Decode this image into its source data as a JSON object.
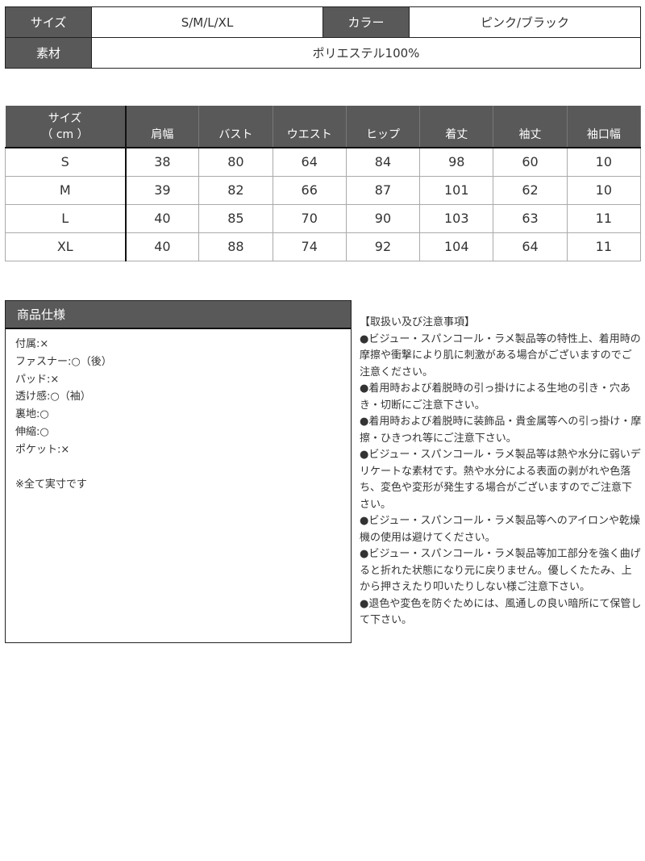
{
  "info": {
    "size_label": "サイズ",
    "size_value": "S/M/L/XL",
    "color_label": "カラー",
    "color_value": "ピンク/ブラック",
    "material_label": "素材",
    "material_value": "ポリエステル100%"
  },
  "size_table": {
    "header_first_line1": "サイズ",
    "header_first_line2": "（ cm ）",
    "columns": [
      "肩幅",
      "バスト",
      "ウエスト",
      "ヒップ",
      "着丈",
      "袖丈",
      "袖口幅"
    ],
    "rows": [
      {
        "size": "S",
        "values": [
          "38",
          "80",
          "64",
          "84",
          "98",
          "60",
          "10"
        ]
      },
      {
        "size": "M",
        "values": [
          "39",
          "82",
          "66",
          "87",
          "101",
          "62",
          "10"
        ]
      },
      {
        "size": "L",
        "values": [
          "40",
          "85",
          "70",
          "90",
          "103",
          "63",
          "11"
        ]
      },
      {
        "size": "XL",
        "values": [
          "40",
          "88",
          "74",
          "92",
          "104",
          "64",
          "11"
        ]
      }
    ]
  },
  "spec": {
    "title": "商品仕様",
    "items": [
      "付属:×",
      "ファスナー:○（後）",
      "パッド:×",
      "透け感:○（袖）",
      "裏地:○",
      "伸縮:○",
      "ポケット:×"
    ],
    "note": "※全て実寸です"
  },
  "notes": {
    "title": "【取扱い及び注意事項】",
    "items": [
      "●ビジュー・スパンコール・ラメ製品等の特性上、着用時の摩擦や衝撃により肌に刺激がある場合がございますのでご注意ください。",
      "●着用時および着脱時の引っ掛けによる生地の引き・穴あき・切断にご注意下さい。",
      "●着用時および着脱時に装飾品・貴金属等への引っ掛け・摩擦・ひきつれ等にご注意下さい。",
      "●ビジュー・スパンコール・ラメ製品等は熱や水分に弱いデリケートな素材です。熱や水分による表面の剥がれや色落ち、変色や変形が発生する場合がございますのでご注意下さい。",
      "●ビジュー・スパンコール・ラメ製品等へのアイロンや乾燥機の使用は避けてください。",
      "●ビジュー・スパンコール・ラメ製品等加工部分を強く曲げると折れた状態になり元に戻りません。優しくたたみ、上から押さえたり叩いたりしない様ご注意下さい。",
      "●退色や変色を防ぐためには、風通しの良い暗所にて保管して下さい。"
    ]
  },
  "colors": {
    "header_bg": "#595959",
    "header_text": "#ffffff"
  }
}
